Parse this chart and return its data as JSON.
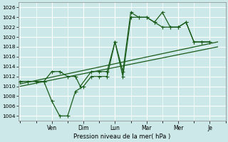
{
  "background_color": "#cce8e8",
  "grid_color": "#b8d8d8",
  "grid_color_major": "#aaaacc",
  "line_color": "#1a5c1a",
  "ylabel": "Pression niveau de la mer( hPa )",
  "ylim": [
    1003,
    1027
  ],
  "yticks": [
    1004,
    1006,
    1008,
    1010,
    1012,
    1014,
    1016,
    1018,
    1020,
    1022,
    1024,
    1026
  ],
  "x_day_labels": [
    "Ven",
    "Dim",
    "Lun",
    "Mar",
    "Mer",
    "Je"
  ],
  "x_day_positions": [
    2,
    4,
    6,
    8,
    10,
    12
  ],
  "xlim": [
    -0.1,
    13.0
  ],
  "series1_x": [
    0,
    0.5,
    1.0,
    1.5,
    2.0,
    2.5,
    3.0,
    3.5,
    3.8,
    4.5,
    5.0,
    5.5,
    6.0,
    6.5,
    7.0,
    7.5,
    8.0,
    8.5,
    9.0,
    9.5,
    10.0,
    10.5,
    11.0,
    11.5,
    12.0
  ],
  "series1_y": [
    1011,
    1011,
    1011,
    1011,
    1013,
    1013,
    1012,
    1012,
    1010,
    1013,
    1013,
    1013,
    1019,
    1013,
    1025,
    1024,
    1024,
    1023,
    1025,
    1022,
    1022,
    1023,
    1019,
    1019,
    1019
  ],
  "series2_x": [
    0,
    1.5,
    2.0,
    2.5,
    3.0,
    3.5,
    4.0,
    4.5,
    5.0,
    5.5,
    6.0,
    6.5,
    7.0,
    7.5,
    8.0,
    8.5,
    9.0,
    9.5,
    10.0,
    10.5,
    11.0,
    11.5,
    12.0
  ],
  "series2_y": [
    1011,
    1011,
    1007,
    1004,
    1004,
    1009,
    1010,
    1012,
    1012,
    1012,
    1019,
    1012,
    1024,
    1024,
    1024,
    1023,
    1022,
    1022,
    1022,
    1023,
    1019,
    1019,
    1019
  ],
  "trend1_x": [
    0,
    12.5
  ],
  "trend1_y": [
    1010.5,
    1019.0
  ],
  "trend2_x": [
    0,
    12.5
  ],
  "trend2_y": [
    1010.0,
    1018.0
  ]
}
